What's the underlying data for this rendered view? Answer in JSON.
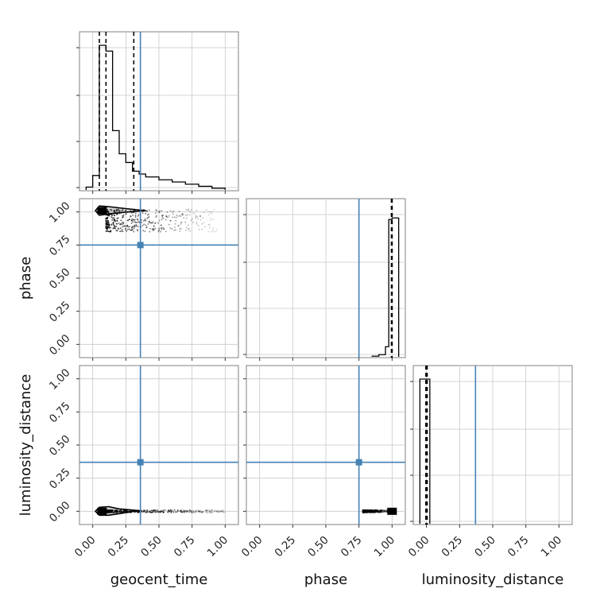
{
  "chart_data": {
    "type": "corner",
    "parameters": [
      "geocent_time",
      "phase",
      "luminosity_distance"
    ],
    "axis_ranges": {
      "geocent_time": [
        -0.1,
        1.1
      ],
      "phase": [
        -0.1,
        1.1
      ],
      "luminosity_distance": [
        -0.1,
        1.1
      ]
    },
    "ticks": [
      0.0,
      0.25,
      0.5,
      0.75,
      1.0
    ],
    "tick_labels": [
      "0.00",
      "0.25",
      "0.50",
      "0.75",
      "1.00"
    ],
    "grid": true,
    "truth": {
      "color": "#4682b4",
      "geocent_time": 0.36,
      "phase": 0.75,
      "luminosity_distance": 0.37
    },
    "marginals": [
      {
        "parameter": "geocent_time",
        "bins": [
          -0.05,
          0.0,
          0.05,
          0.1,
          0.15,
          0.2,
          0.25,
          0.3,
          0.35,
          0.4,
          0.5,
          0.6,
          0.7,
          0.8,
          0.9,
          1.0
        ],
        "density": [
          0.02,
          0.1,
          1.0,
          0.96,
          0.41,
          0.25,
          0.19,
          0.13,
          0.11,
          0.09,
          0.07,
          0.055,
          0.04,
          0.025,
          0.012
        ],
        "quantiles": [
          0.05,
          0.1,
          0.31
        ]
      },
      {
        "parameter": "phase",
        "bins": [
          0.85,
          0.9,
          0.95,
          0.975,
          1.0,
          1.05
        ],
        "density": [
          0.005,
          0.015,
          0.07,
          0.95,
          0.96
        ],
        "quantiles": [
          0.995,
          1.0,
          1.0
        ]
      },
      {
        "parameter": "luminosity_distance",
        "bins": [
          -0.05,
          0.0,
          0.025
        ],
        "density": [
          1.0,
          1.0
        ],
        "quantiles": [
          -0.005,
          0.0,
          0.005
        ]
      }
    ],
    "joint": [
      {
        "x": "geocent_time",
        "y": "phase",
        "peak": [
          0.07,
          1.01
        ],
        "tail": {
          "x_range": [
            0.1,
            0.95
          ],
          "y_range": [
            0.85,
            1.02
          ]
        },
        "contour": [
          [
            0.02,
            1.01
          ],
          [
            0.05,
            1.045
          ],
          [
            0.12,
            1.04
          ],
          [
            0.25,
            1.025
          ],
          [
            0.4,
            1.01
          ],
          [
            0.25,
            0.998
          ],
          [
            0.12,
            0.985
          ],
          [
            0.05,
            0.975
          ],
          [
            0.02,
            1.01
          ]
        ]
      },
      {
        "x": "geocent_time",
        "y": "luminosity_distance",
        "peak": [
          0.07,
          0.0
        ],
        "tail": {
          "x_range": [
            0.1,
            1.0
          ],
          "y_range": [
            -0.01,
            0.01
          ]
        },
        "contour": [
          [
            0.02,
            0.0
          ],
          [
            0.05,
            0.03
          ],
          [
            0.12,
            0.035
          ],
          [
            0.2,
            0.018
          ],
          [
            0.35,
            0.005
          ],
          [
            0.2,
            -0.018
          ],
          [
            0.12,
            -0.03
          ],
          [
            0.05,
            -0.03
          ],
          [
            0.02,
            0.0
          ]
        ]
      },
      {
        "x": "phase",
        "y": "luminosity_distance",
        "peak": [
          1.0,
          0.0
        ],
        "tail": {
          "x_range": [
            0.78,
            0.98
          ],
          "y_range": [
            -0.01,
            0.01
          ]
        },
        "contour": []
      }
    ]
  }
}
